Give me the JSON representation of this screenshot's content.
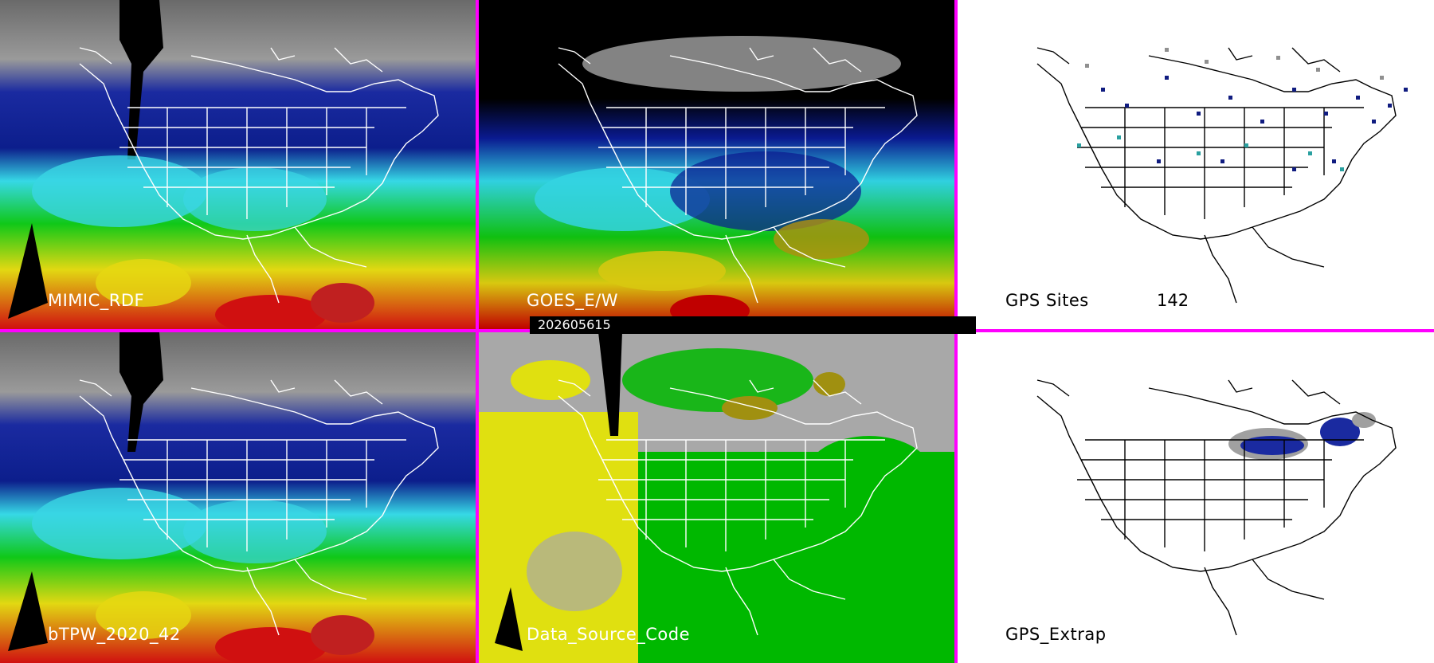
{
  "panels": [
    {
      "label": "MIMIC_RDF"
    },
    {
      "label": "GOES_E/W"
    },
    {
      "label": "GPS Sites",
      "count": "142"
    },
    {
      "label": "bTPW_2020_42"
    },
    {
      "label": "Data_Source_Code"
    },
    {
      "label": "GPS_Extrap"
    }
  ],
  "timestamp": "202605615",
  "colors": {
    "separator": "#ff00ff",
    "dry": "#8a8a8a",
    "low": "#1020b0",
    "mid": "#30e0e8",
    "moist": "#10d010",
    "wet": "#e8e010",
    "very_wet": "#d00000",
    "source_yellow": "#e0e010",
    "source_green": "#00b800",
    "source_gray": "#a8a8a8"
  }
}
